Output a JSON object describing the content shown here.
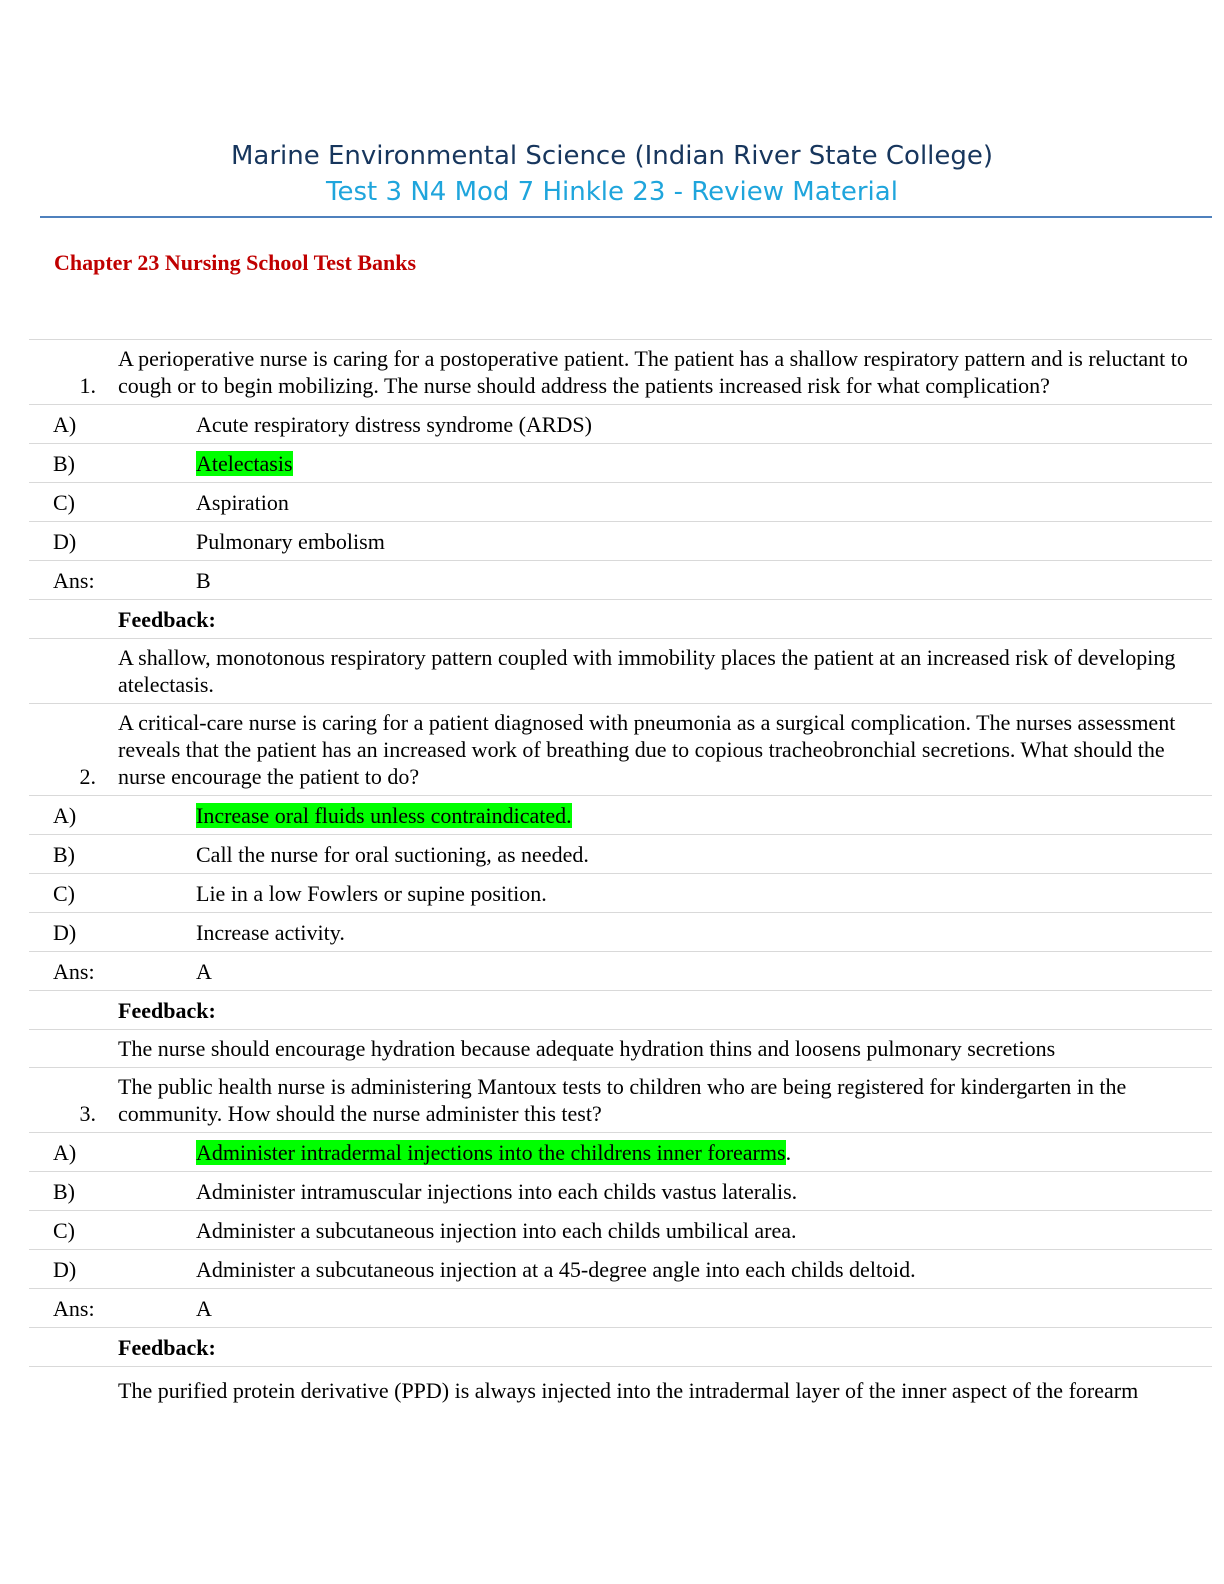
{
  "header": {
    "course": "Marine Environmental Science (Indian River State College)",
    "doc_title": "Test 3 N4 Mod 7 Hinkle 23 - Review Material"
  },
  "chapter_heading": "Chapter 23 Nursing School Test Banks",
  "questions": [
    {
      "number": "1.",
      "text": "A perioperative nurse is caring for a postoperative patient. The patient has a shallow respiratory pattern and is reluctant to cough or to begin mobilizing. The nurse should address the patients increased risk for what complication?",
      "options": [
        {
          "label": "A)",
          "text": "Acute respiratory distress syndrome (ARDS)",
          "suffix": ""
        },
        {
          "label": "B)",
          "text": "Atelectasis",
          "suffix": ""
        },
        {
          "label": "C)",
          "text": "Aspiration",
          "suffix": ""
        },
        {
          "label": "D)",
          "text": "Pulmonary embolism",
          "suffix": ""
        }
      ],
      "highlighted": "B",
      "ans_label": "Ans:",
      "answer": "B",
      "feedback_label": "Feedback:",
      "feedback": "A shallow, monotonous respiratory pattern coupled with immobility places the patient at an increased risk of developing atelectasis."
    },
    {
      "number": "2.",
      "text": "A critical-care nurse is caring for a patient diagnosed with pneumonia as a surgical complication. The nurses assessment reveals that the patient has an increased work of breathing due to copious tracheobronchial secretions. What should the nurse encourage the patient to do?",
      "options": [
        {
          "label": "A)",
          "text": "Increase oral fluids unless contraindicated.",
          "suffix": ""
        },
        {
          "label": "B)",
          "text": "Call the nurse for oral suctioning, as needed.",
          "suffix": ""
        },
        {
          "label": "C)",
          "text": "Lie in a low Fowlers or supine position.",
          "suffix": ""
        },
        {
          "label": "D)",
          "text": "Increase activity.",
          "suffix": ""
        }
      ],
      "highlighted": "A",
      "ans_label": "Ans:",
      "answer": "A",
      "feedback_label": "Feedback:",
      "feedback": "The nurse should encourage hydration because adequate hydration thins and loosens pulmonary secretions"
    },
    {
      "number": "3.",
      "text": "The public health nurse is administering Mantoux tests to children who are being registered for kindergarten in the community. How should the nurse administer this test?",
      "options": [
        {
          "label": "A)",
          "text": "Administer intradermal injections into the childrens inner forearms",
          "suffix": "."
        },
        {
          "label": "B)",
          "text": "Administer intramuscular injections into each childs vastus lateralis.",
          "suffix": ""
        },
        {
          "label": "C)",
          "text": "Administer a subcutaneous injection into each childs umbilical area.",
          "suffix": ""
        },
        {
          "label": "D)",
          "text": "Administer a subcutaneous injection at a 45-degree angle into each childs deltoid.",
          "suffix": ""
        }
      ],
      "highlighted": "A",
      "ans_label": "Ans:",
      "answer": "A",
      "feedback_label": "Feedback:",
      "feedback": "The purified protein derivative (PPD) is always injected into the intradermal layer of the inner aspect of the forearm"
    }
  ],
  "colors": {
    "title_dark": "#17365d",
    "title_light": "#1fa5dc",
    "rule": "#4f81bd",
    "chapter": "#c00000",
    "highlight": "#00ff00"
  }
}
